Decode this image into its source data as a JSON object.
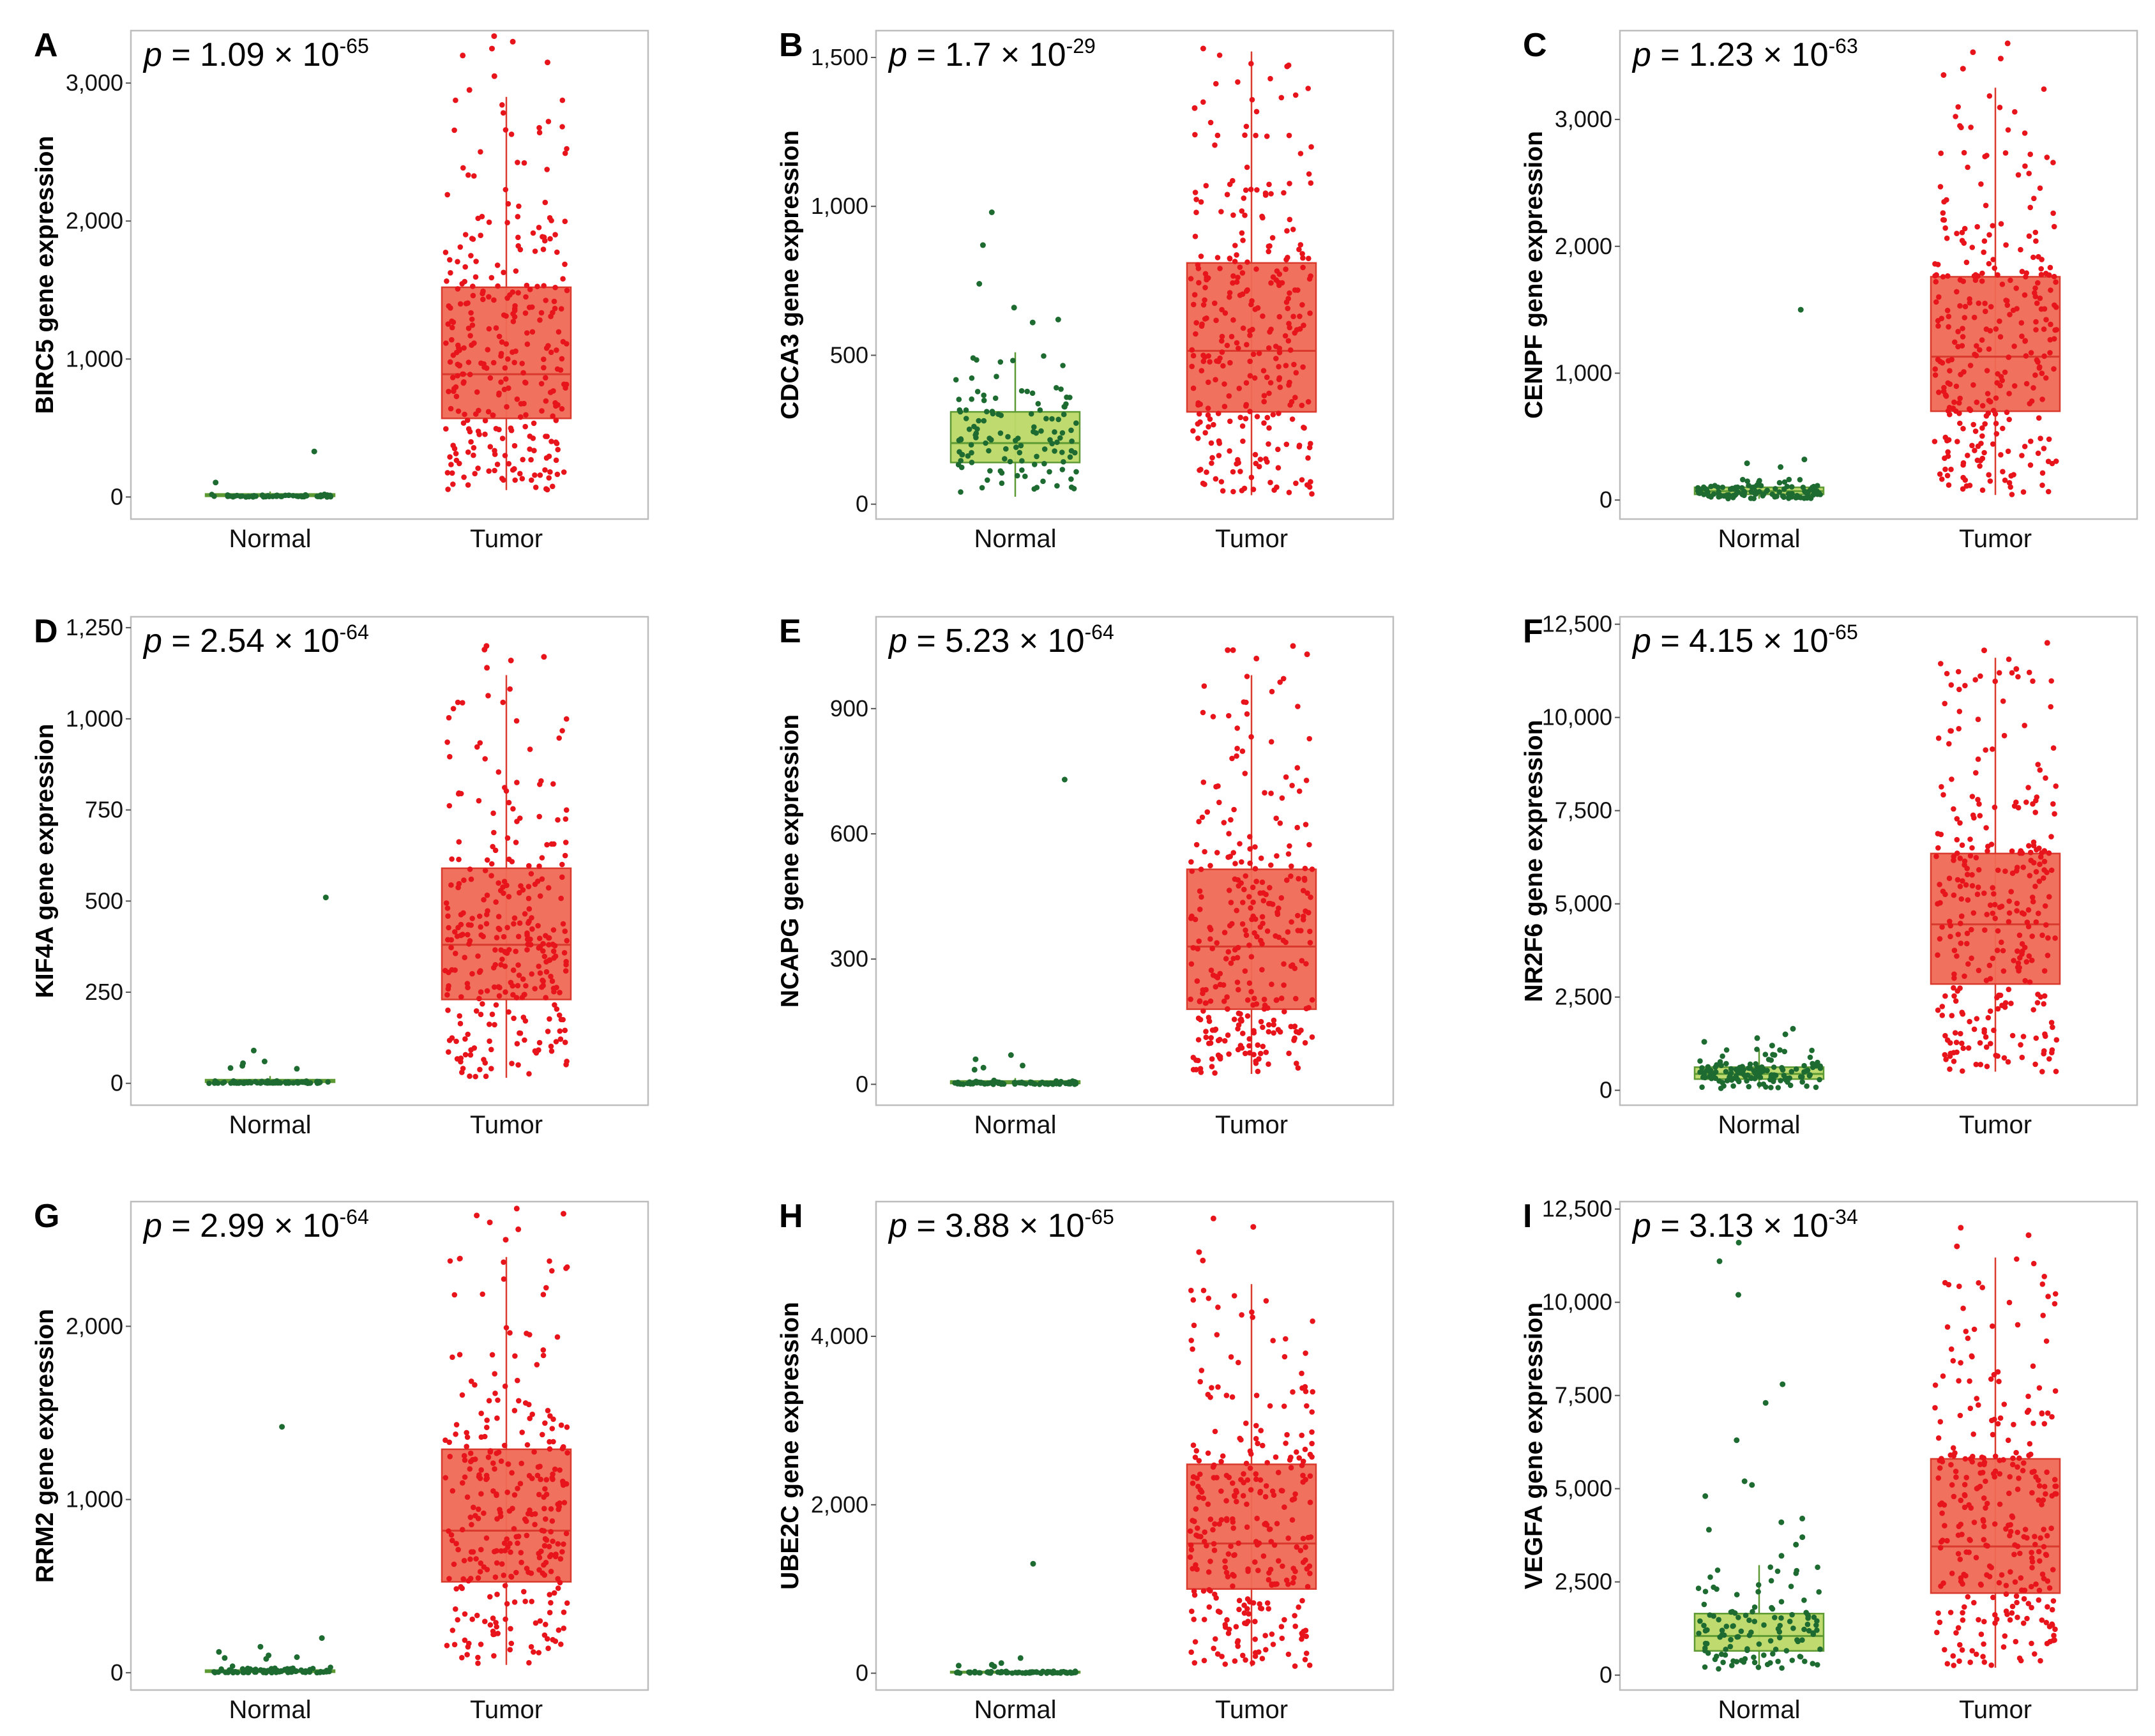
{
  "colors": {
    "normal_points": "#1e6b32",
    "normal_box_fill": "#bcd968",
    "normal_box_stroke": "#5e9a34",
    "tumor_points": "#e8141c",
    "tumor_box_fill": "#ef6a55",
    "tumor_box_stroke": "#d93a2d"
  },
  "chart_data": [
    {
      "type": "box",
      "panel": "A",
      "gene": "BIRC5",
      "ylabel": "BIRC5 gene expression",
      "p_base": "1.09 × 10",
      "p_exp": "-65",
      "categories": [
        "Normal",
        "Tumor"
      ],
      "ylim": [
        -160,
        3380
      ],
      "yticks": [
        0,
        1000,
        2000,
        3000
      ],
      "ytick_labels": [
        "0",
        "1,000",
        "2,000",
        "3,000"
      ],
      "groups": [
        {
          "name": "Normal",
          "q1": 5,
          "median": 12,
          "q3": 22,
          "whisker_low": 0,
          "whisker_high": 40,
          "n": 60,
          "spread": 8,
          "max": 40,
          "outliers": [
            330,
            105
          ]
        },
        {
          "name": "Tumor",
          "q1": 570,
          "median": 890,
          "q3": 1520,
          "whisker_low": 50,
          "whisker_high": 2900,
          "n": 300,
          "outliers": [
            3300,
            3250,
            3340,
            3200,
            3150,
            3050,
            2950
          ]
        }
      ]
    },
    {
      "type": "box",
      "panel": "B",
      "gene": "CDCA3",
      "ylabel": "CDCA3 gene expression",
      "p_base": "1.7 × 10",
      "p_exp": "-29",
      "categories": [
        "Normal",
        "Tumor"
      ],
      "ylim": [
        -50,
        1590
      ],
      "yticks": [
        0,
        500,
        1000,
        1500
      ],
      "ytick_labels": [
        "0",
        "500",
        "1,000",
        "1,500"
      ],
      "groups": [
        {
          "name": "Normal",
          "q1": 140,
          "median": 205,
          "q3": 310,
          "whisker_low": 25,
          "whisker_high": 510,
          "n": 120,
          "outliers": [
            980,
            870,
            740,
            660,
            620,
            610
          ]
        },
        {
          "name": "Tumor",
          "q1": 310,
          "median": 515,
          "q3": 810,
          "whisker_low": 30,
          "whisker_high": 1520,
          "n": 300,
          "outliers": [
            1530,
            1470,
            1330
          ]
        }
      ]
    },
    {
      "type": "box",
      "panel": "C",
      "gene": "CENPF",
      "ylabel": "CENPF gene expression",
      "p_base": "1.23 × 10",
      "p_exp": "-63",
      "categories": [
        "Normal",
        "Tumor"
      ],
      "ylim": [
        -150,
        3700
      ],
      "yticks": [
        0,
        1000,
        2000,
        3000
      ],
      "ytick_labels": [
        "0",
        "1,000",
        "2,000",
        "3,000"
      ],
      "groups": [
        {
          "name": "Normal",
          "q1": 45,
          "median": 70,
          "q3": 100,
          "whisker_low": 10,
          "whisker_high": 170,
          "n": 110,
          "outliers": [
            1500,
            320,
            290,
            260
          ]
        },
        {
          "name": "Tumor",
          "q1": 700,
          "median": 1130,
          "q3": 1760,
          "whisker_low": 40,
          "whisker_high": 3250,
          "n": 300,
          "outliers": [
            3600,
            3530,
            3480,
            3400,
            3350
          ]
        }
      ]
    },
    {
      "type": "box",
      "panel": "D",
      "gene": "KIF4A",
      "ylabel": "KIF4A gene expression",
      "p_base": "2.54 × 10",
      "p_exp": "-64",
      "categories": [
        "Normal",
        "Tumor"
      ],
      "ylim": [
        -60,
        1280
      ],
      "yticks": [
        0,
        250,
        500,
        750,
        1000,
        1250
      ],
      "ytick_labels": [
        "0",
        "250",
        "500",
        "750",
        "1,000",
        "1,250"
      ],
      "groups": [
        {
          "name": "Normal",
          "q1": 3,
          "median": 6,
          "q3": 10,
          "whisker_low": 0,
          "whisker_high": 20,
          "n": 80,
          "spread": 3,
          "max": 28,
          "outliers": [
            510,
            90,
            60,
            55,
            48,
            42,
            40
          ]
        },
        {
          "name": "Tumor",
          "q1": 230,
          "median": 380,
          "q3": 590,
          "whisker_low": 15,
          "whisker_high": 1120,
          "n": 300,
          "outliers": [
            1200,
            1190,
            1170,
            1160,
            1140
          ]
        }
      ]
    },
    {
      "type": "box",
      "panel": "E",
      "gene": "NCAPG",
      "ylabel": "NCAPG gene expression",
      "p_base": "5.23 × 10",
      "p_exp": "-64",
      "categories": [
        "Normal",
        "Tumor"
      ],
      "ylim": [
        -50,
        1120
      ],
      "yticks": [
        0,
        300,
        600,
        900
      ],
      "ytick_labels": [
        "0",
        "300",
        "600",
        "900"
      ],
      "groups": [
        {
          "name": "Normal",
          "q1": 2,
          "median": 4,
          "q3": 8,
          "whisker_low": 0,
          "whisker_high": 15,
          "n": 80,
          "spread": 4,
          "max": 30,
          "outliers": [
            730,
            70,
            60,
            45,
            40,
            35
          ]
        },
        {
          "name": "Tumor",
          "q1": 180,
          "median": 330,
          "q3": 515,
          "whisker_low": 25,
          "whisker_high": 980,
          "n": 300,
          "outliers": [
            1050,
            1040,
            1040,
            1030,
            1020
          ]
        }
      ]
    },
    {
      "type": "box",
      "panel": "F",
      "gene": "NR2F6",
      "ylabel": "NR2F6 gene expression",
      "p_base": "4.15 × 10",
      "p_exp": "-65",
      "categories": [
        "Normal",
        "Tumor"
      ],
      "ylim": [
        -400,
        12700
      ],
      "yticks": [
        0,
        2500,
        5000,
        7500,
        10000,
        12500
      ],
      "ytick_labels": [
        "0",
        "2,500",
        "5,000",
        "7,500",
        "10,000",
        "12,500"
      ],
      "groups": [
        {
          "name": "Normal",
          "q1": 300,
          "median": 440,
          "q3": 620,
          "whisker_low": 50,
          "whisker_high": 1100,
          "n": 130,
          "outliers": [
            1650,
            1500,
            1400,
            1300,
            1200
          ]
        },
        {
          "name": "Tumor",
          "q1": 2850,
          "median": 4450,
          "q3": 6350,
          "whisker_low": 500,
          "whisker_high": 11600,
          "n": 300,
          "outliers": [
            12000,
            11800,
            11300
          ]
        }
      ]
    },
    {
      "type": "box",
      "panel": "G",
      "gene": "RRM2",
      "ylabel": "RRM2 gene expression",
      "p_base": "2.99 × 10",
      "p_exp": "-64",
      "categories": [
        "Normal",
        "Tumor"
      ],
      "ylim": [
        -100,
        2720
      ],
      "yticks": [
        0,
        1000,
        2000
      ],
      "ytick_labels": [
        "0",
        "1,000",
        "2,000"
      ],
      "groups": [
        {
          "name": "Normal",
          "q1": 3,
          "median": 8,
          "q3": 15,
          "whisker_low": 0,
          "whisker_high": 30,
          "n": 80,
          "spread": 15,
          "max": 60,
          "outliers": [
            1420,
            200,
            150,
            120,
            100,
            90,
            85,
            80
          ]
        },
        {
          "name": "Tumor",
          "q1": 525,
          "median": 820,
          "q3": 1290,
          "whisker_low": 45,
          "whisker_high": 2400,
          "n": 300,
          "outliers": [
            2680,
            2650,
            2640,
            2600,
            2560,
            2500
          ]
        }
      ]
    },
    {
      "type": "box",
      "panel": "H",
      "gene": "UBE2C",
      "ylabel": "UBE2C gene expression",
      "p_base": "3.88 × 10",
      "p_exp": "-65",
      "categories": [
        "Normal",
        "Tumor"
      ],
      "ylim": [
        -200,
        5600
      ],
      "yticks": [
        0,
        2000,
        4000
      ],
      "ytick_labels": [
        "0",
        "2,000",
        "4,000"
      ],
      "groups": [
        {
          "name": "Normal",
          "q1": 4,
          "median": 10,
          "q3": 20,
          "whisker_low": 0,
          "whisker_high": 40,
          "n": 80,
          "spread": 12,
          "max": 60,
          "outliers": [
            1300,
            180,
            120,
            100,
            90,
            80
          ]
        },
        {
          "name": "Tumor",
          "q1": 1000,
          "median": 1540,
          "q3": 2480,
          "whisker_low": 80,
          "whisker_high": 4620,
          "n": 300,
          "outliers": [
            5400,
            5300,
            5000,
            4900
          ]
        }
      ]
    },
    {
      "type": "box",
      "panel": "I",
      "gene": "VEGFA",
      "ylabel": "VEGFA gene expression",
      "p_base": "3.13 × 10",
      "p_exp": "-34",
      "categories": [
        "Normal",
        "Tumor"
      ],
      "ylim": [
        -400,
        12700
      ],
      "yticks": [
        0,
        2500,
        5000,
        7500,
        10000,
        12500
      ],
      "ytick_labels": [
        "0",
        "2,500",
        "5,000",
        "7,500",
        "10,000",
        "12,500"
      ],
      "groups": [
        {
          "name": "Normal",
          "q1": 650,
          "median": 1050,
          "q3": 1650,
          "whisker_low": 150,
          "whisker_high": 2950,
          "n": 120,
          "outliers": [
            11600,
            11100,
            10200,
            7800,
            7300,
            6300,
            5200,
            5100,
            4800,
            4200,
            4100,
            3900,
            3700,
            3500,
            3200
          ]
        },
        {
          "name": "Tumor",
          "q1": 2200,
          "median": 3450,
          "q3": 5800,
          "whisker_low": 200,
          "whisker_high": 11200,
          "n": 300,
          "outliers": [
            12000,
            11800,
            11500
          ]
        }
      ]
    }
  ]
}
